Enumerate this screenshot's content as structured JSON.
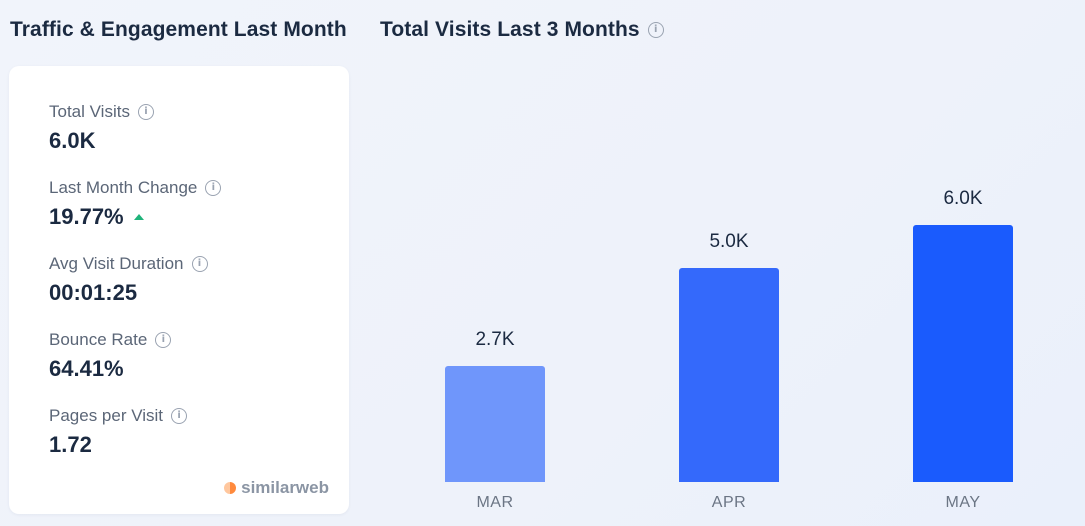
{
  "header": {
    "left_title": "Traffic & Engagement Last Month",
    "right_title": "Total Visits Last 3 Months"
  },
  "metrics": [
    {
      "label": "Total Visits",
      "value": "6.0K"
    },
    {
      "label": "Last Month Change",
      "value": "19.77%",
      "trend": "up"
    },
    {
      "label": "Avg Visit Duration",
      "value": "00:01:25"
    },
    {
      "label": "Bounce Rate",
      "value": "64.41%"
    },
    {
      "label": "Pages per Visit",
      "value": "1.72"
    }
  ],
  "brand": {
    "name": "similarweb"
  },
  "icons": {
    "info": "info-icon",
    "trend": "arrow-up-icon",
    "logo": "similarweb-logo-icon"
  },
  "colors": {
    "bar_mar": "#6f96fb",
    "bar_apr": "#3469fb",
    "bar_may": "#1a5bfd",
    "trend_up": "#1fb37a"
  },
  "chart_data": {
    "type": "bar",
    "title": "Total Visits Last 3 Months",
    "categories": [
      "MAR",
      "APR",
      "MAY"
    ],
    "values": [
      2700,
      5000,
      6000
    ],
    "labels": [
      "2.7K",
      "5.0K",
      "6.0K"
    ],
    "ylim": [
      0,
      6000
    ],
    "grid": false
  }
}
